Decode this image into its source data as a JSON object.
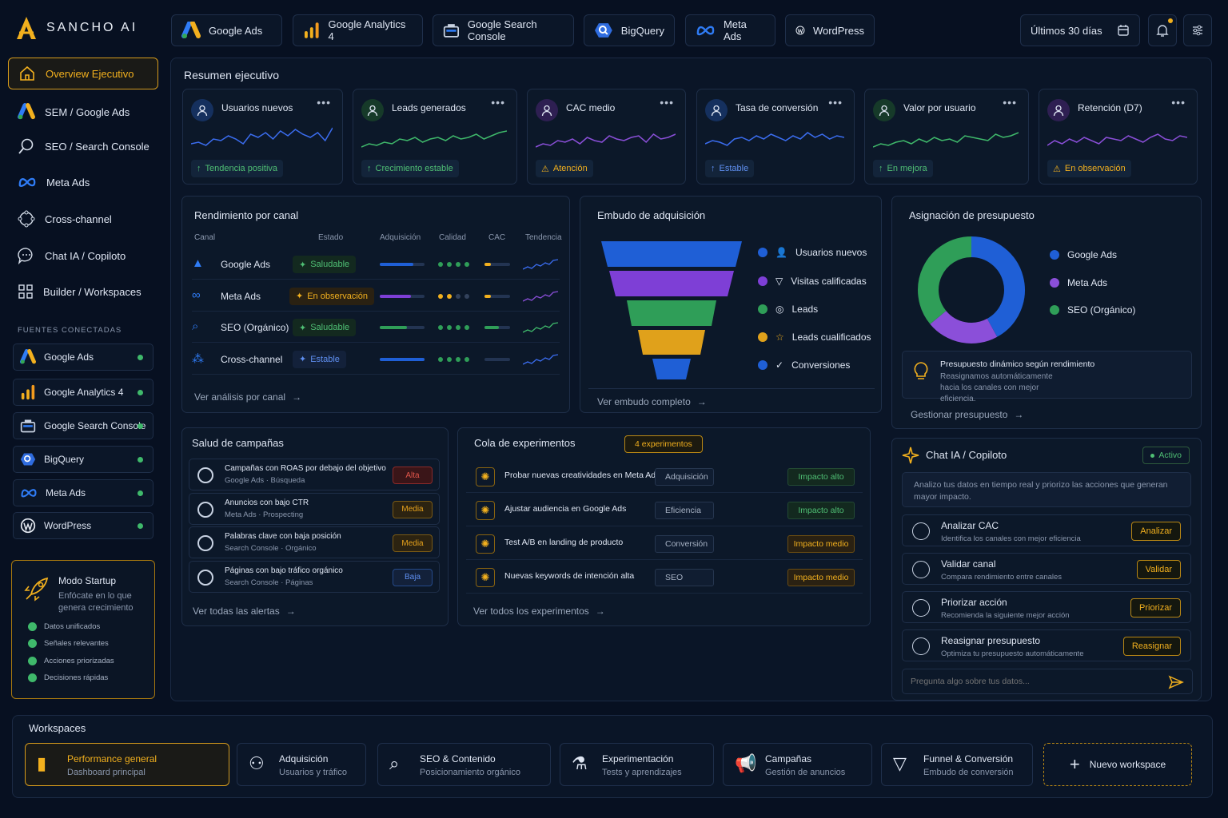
{
  "app": {
    "name": "SANCHO AI"
  },
  "top_tabs": [
    {
      "label": "Google Ads",
      "icon": "google-ads-icon"
    },
    {
      "label": "Google Analytics 4",
      "icon": "analytics-icon"
    },
    {
      "label": "Google Search Console",
      "icon": "search-console-icon"
    },
    {
      "label": "BigQuery",
      "icon": "bigquery-icon"
    },
    {
      "label": "Meta Ads",
      "icon": "meta-icon"
    },
    {
      "label": "WordPress",
      "icon": "wordpress-icon"
    }
  ],
  "date_range": "Últimos 30 días",
  "sidebar": {
    "items": [
      {
        "label": "Overview Ejecutivo",
        "icon": "home-icon"
      },
      {
        "label": "SEM / Google Ads",
        "icon": "google-ads-icon"
      },
      {
        "label": "SEO / Search Console",
        "icon": "search-icon"
      },
      {
        "label": "Meta Ads",
        "icon": "meta-icon"
      },
      {
        "label": "Cross-channel",
        "icon": "crosschannel-icon"
      },
      {
        "label": "Chat IA / Copiloto",
        "icon": "chat-icon"
      },
      {
        "label": "Builder / Workspaces",
        "icon": "grid-icon"
      }
    ],
    "sources_title": "FUENTES CONECTADAS",
    "sources": [
      "Google Ads",
      "Google Analytics 4",
      "Google Search Console",
      "BigQuery",
      "Meta Ads",
      "WordPress"
    ],
    "startup": {
      "title": "Modo Startup",
      "subtitle": "Enfócate en lo que genera crecimiento",
      "checks": [
        "Datos unificados",
        "Señales relevantes",
        "Acciones priorizadas",
        "Decisiones rápidas"
      ]
    }
  },
  "summary": {
    "title": "Resumen ejecutivo",
    "kpis": [
      {
        "label": "Usuarios nuevos",
        "badge": "Tendencia positiva",
        "color": "#3b6df0",
        "badge_color": "#4fbf74"
      },
      {
        "label": "Leads generados",
        "badge": "Crecimiento estable",
        "color": "#3fb96b",
        "badge_color": "#4fbf74"
      },
      {
        "label": "CAC medio",
        "badge": "Atención",
        "color": "#8b4fd9",
        "badge_color": "#f2b01e"
      },
      {
        "label": "Tasa de conversión",
        "badge": "Estable",
        "color": "#3b6df0",
        "badge_color": "#5f8ff0"
      },
      {
        "label": "Valor por usuario",
        "badge": "En mejora",
        "color": "#3fb96b",
        "badge_color": "#4fbf74"
      },
      {
        "label": "Retención (D7)",
        "badge": "En observación",
        "color": "#8b4fd9",
        "badge_color": "#f2b01e"
      }
    ]
  },
  "channels": {
    "title": "Rendimiento por canal",
    "headers": {
      "canal": "Canal",
      "estado": "Estado",
      "adquisicion": "Adquisición",
      "calidad": "Calidad",
      "cac": "CAC",
      "tendencia": "Tendencia"
    },
    "rows": [
      {
        "name": "Google Ads",
        "status": "Saludable",
        "acq": 0.75,
        "quality": 4,
        "cac": 0.25
      },
      {
        "name": "Meta Ads",
        "status": "En observación",
        "acq": 0.7,
        "quality": 2,
        "cac": 0.25
      },
      {
        "name": "SEO (Orgánico)",
        "status": "Saludable",
        "acq": 0.6,
        "quality": 4,
        "cac": 0.55
      },
      {
        "name": "Cross-channel",
        "status": "Estable",
        "acq": 1,
        "quality": 4,
        "cac": 0
      }
    ],
    "link": "Ver análisis por canal"
  },
  "funnel": {
    "title": "Embudo de adquisición",
    "stages": [
      "Usuarios nuevos",
      "Visitas calificadas",
      "Leads",
      "Leads cualificados",
      "Conversiones"
    ],
    "link": "Ver embudo completo"
  },
  "budget": {
    "title": "Asignación de presupuesto",
    "legend": [
      "Google Ads",
      "Meta Ads",
      "SEO (Orgánico)"
    ],
    "colors": [
      "#1f5fd6",
      "#8b4fd9",
      "#2f9e58"
    ],
    "shares": [
      0.42,
      0.22,
      0.36
    ],
    "note_title": "Presupuesto dinámico según rendimiento",
    "note_text": "Reasignamos automáticamente hacia los canales con mejor eficiencia.",
    "link": "Gestionar presupuesto"
  },
  "health": {
    "title": "Salud de campañas",
    "alerts": [
      {
        "t1": "Campañas con ROAS por debajo del objetivo",
        "t2": "Google Ads · Búsqueda",
        "prio": "Alta"
      },
      {
        "t1": "Anuncios con bajo CTR",
        "t2": "Meta Ads · Prospecting",
        "prio": "Media"
      },
      {
        "t1": "Palabras clave con baja posición",
        "t2": "Search Console · Orgánico",
        "prio": "Media"
      },
      {
        "t1": "Páginas con bajo tráfico orgánico",
        "t2": "Search Console · Páginas",
        "prio": "Baja"
      }
    ],
    "link": "Ver todas las alertas"
  },
  "experiments": {
    "title": "Cola de experimentos",
    "count": "4 experimentos",
    "items": [
      {
        "t": "Probar nuevas creatividades en Meta Ads",
        "tag": "Adquisición",
        "impact": "Impacto alto"
      },
      {
        "t": "Ajustar audiencia en Google Ads",
        "tag": "Eficiencia",
        "impact": "Impacto alto"
      },
      {
        "t": "Test A/B en landing de producto",
        "tag": "Conversión",
        "impact": "Impacto medio"
      },
      {
        "t": "Nuevas keywords de intención alta",
        "tag": "SEO",
        "impact": "Impacto medio"
      }
    ],
    "link": "Ver todos los experimentos"
  },
  "chat": {
    "title": "Chat IA / Copiloto",
    "status": "Activo",
    "intro": "Analizo tus datos en tiempo real y priorizo las acciones que generan mayor impacto.",
    "actions": [
      {
        "t1": "Analizar CAC",
        "t2": "Identifica los canales con mejor eficiencia",
        "btn": "Analizar"
      },
      {
        "t1": "Validar canal",
        "t2": "Compara rendimiento entre canales",
        "btn": "Validar"
      },
      {
        "t1": "Priorizar acción",
        "t2": "Recomienda la siguiente mejor acción",
        "btn": "Priorizar"
      },
      {
        "t1": "Reasignar presupuesto",
        "t2": "Optimiza tu presupuesto automáticamente",
        "btn": "Reasignar"
      }
    ],
    "placeholder": "Pregunta algo sobre tus datos..."
  },
  "workspaces": {
    "title": "Workspaces",
    "items": [
      {
        "t1": "Performance general",
        "t2": "Dashboard principal"
      },
      {
        "t1": "Adquisición",
        "t2": "Usuarios y tráfico"
      },
      {
        "t1": "SEO & Contenido",
        "t2": "Posicionamiento orgánico"
      },
      {
        "t1": "Experimentación",
        "t2": "Tests y aprendizajes"
      },
      {
        "t1": "Campañas",
        "t2": "Gestión de anuncios"
      },
      {
        "t1": "Funnel & Conversión",
        "t2": "Embudo de conversión"
      }
    ],
    "new": "Nuevo workspace"
  }
}
